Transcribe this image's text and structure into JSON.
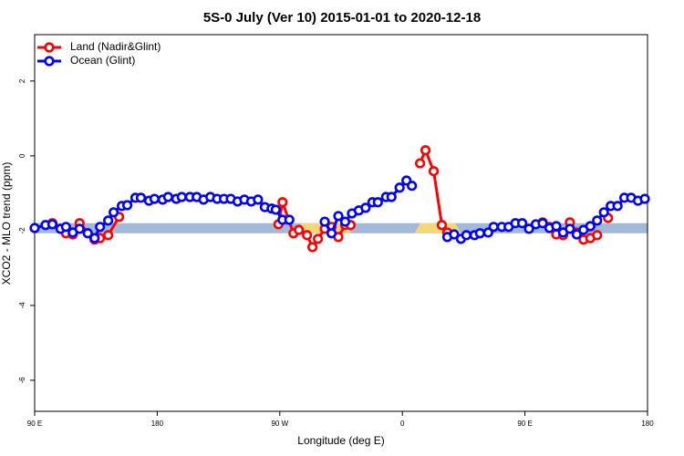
{
  "chart_data": {
    "type": "line",
    "title": "5S-0 July (Ver 10)   2015-01-01 to 2020-12-18",
    "x_label": "Longitude (deg E)",
    "y_label": "XCO2 - MLO trend (ppm)",
    "xlim": [
      90,
      540
    ],
    "xticks": [
      {
        "value": 90,
        "label": "90 E"
      },
      {
        "value": 180,
        "label": "180"
      },
      {
        "value": 270,
        "label": "90 W"
      },
      {
        "value": 360,
        "label": "0"
      },
      {
        "value": 450,
        "label": "90 E"
      },
      {
        "value": 540,
        "label": "180"
      }
    ],
    "ylim": [
      -6.83,
      3.24
    ],
    "yticks": [
      2,
      0,
      -2,
      -4,
      -6
    ],
    "legend": "top-left",
    "band": {
      "range": [
        -2.07,
        -1.8
      ],
      "color": "#a3b9d9",
      "highlight_color": "#f5d77a",
      "highlights": [
        [
          282,
          322
        ],
        [
          369,
          403
        ]
      ]
    },
    "series": [
      {
        "name": "Land (Nadir&Glint)",
        "color": "#ff0000",
        "x": [
          103,
          113,
          118,
          123,
          134,
          138,
          144,
          152,
          228,
          269,
          272,
          280,
          284,
          290,
          294,
          298,
          303,
          308,
          313,
          318,
          322,
          345,
          373,
          377,
          383,
          389,
          393,
          428,
          463,
          468,
          473,
          478,
          483,
          488,
          493,
          498,
          503,
          507,
          511
        ],
        "values": [
          -1.8,
          -2.07,
          -2.1,
          -1.8,
          -2.24,
          -2.2,
          -2.12,
          -1.63,
          null,
          -1.83,
          -1.24,
          -2.07,
          -1.98,
          -2.12,
          -2.44,
          -2.22,
          -1.95,
          -1.9,
          -2.17,
          -1.85,
          -1.85,
          null,
          -0.2,
          0.15,
          -0.41,
          -1.85,
          -2.05,
          null,
          -1.78,
          -1.9,
          -2.1,
          -2.12,
          -1.78,
          -2.05,
          -2.24,
          -2.2,
          -2.12,
          null,
          -1.66
        ]
      },
      {
        "name": "Ocean (Glint)",
        "color": "#0000ff",
        "x": [
          90,
          98,
          103,
          109,
          113,
          118,
          123,
          129,
          134,
          138,
          144,
          148,
          154,
          158,
          164,
          168,
          174,
          178,
          184,
          188,
          194,
          198,
          204,
          209,
          214,
          219,
          224,
          229,
          234,
          239,
          244,
          249,
          254,
          259,
          264,
          267,
          272,
          277,
          290,
          303,
          308,
          313,
          318,
          323,
          328,
          333,
          338,
          342,
          348,
          352,
          358,
          363,
          367,
          380,
          393,
          398,
          403,
          407,
          413,
          417,
          423,
          427,
          433,
          438,
          443,
          448,
          453,
          458,
          463,
          468,
          473,
          478,
          483,
          488,
          493,
          498,
          503,
          508,
          513,
          518,
          523,
          528,
          533,
          538
        ],
        "values": [
          -1.93,
          -1.85,
          -1.83,
          -1.95,
          -1.9,
          -2.05,
          -1.95,
          -2.07,
          -2.2,
          -1.9,
          -1.73,
          -1.51,
          -1.34,
          -1.32,
          -1.12,
          -1.12,
          -1.2,
          -1.15,
          -1.17,
          -1.1,
          -1.15,
          -1.1,
          -1.1,
          -1.1,
          -1.17,
          -1.1,
          -1.15,
          -1.15,
          -1.15,
          -1.22,
          -1.17,
          -1.22,
          -1.17,
          -1.37,
          -1.41,
          -1.44,
          -1.71,
          -1.71,
          null,
          -1.76,
          -2.07,
          -1.61,
          -1.76,
          -1.54,
          -1.46,
          -1.39,
          -1.24,
          -1.24,
          -1.1,
          -1.1,
          -0.85,
          -0.66,
          -0.8,
          null,
          -2.17,
          -2.1,
          -2.22,
          -2.12,
          -2.12,
          -2.07,
          -2.05,
          -1.9,
          -1.9,
          -1.9,
          -1.8,
          -1.8,
          -1.95,
          -1.83,
          -1.8,
          -1.93,
          -1.88,
          -2.05,
          -1.95,
          -2.1,
          -1.98,
          -1.88,
          -1.73,
          -1.51,
          -1.34,
          -1.34,
          -1.12,
          -1.12,
          -1.2,
          -1.15
        ]
      }
    ]
  }
}
